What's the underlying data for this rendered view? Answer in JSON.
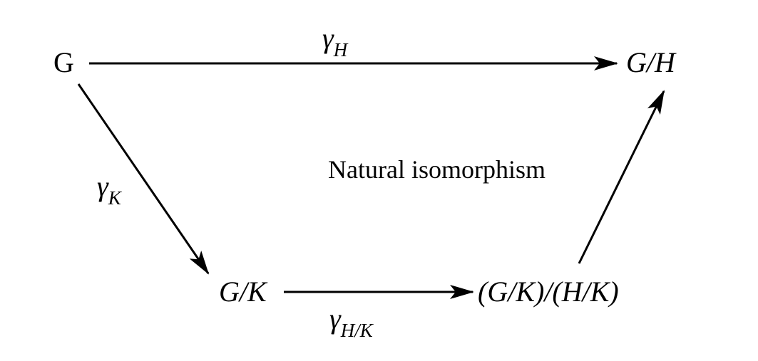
{
  "nodes": {
    "g": {
      "main": "G"
    },
    "g_mod_h": {
      "main": "G/H"
    },
    "g_mod_k": {
      "main": "G/K"
    },
    "quotient": {
      "main": "(G/K)/(H/K)"
    }
  },
  "arrows": {
    "top": {
      "symbol": "γ",
      "subscript": "H"
    },
    "left": {
      "symbol": "γ",
      "subscript": "K"
    },
    "bottom": {
      "symbol": "γ",
      "subscript": "H/K"
    },
    "right": {
      "text": "Natural isomorphism"
    }
  },
  "colors": {
    "ink": "#000000",
    "background": "#ffffff"
  }
}
